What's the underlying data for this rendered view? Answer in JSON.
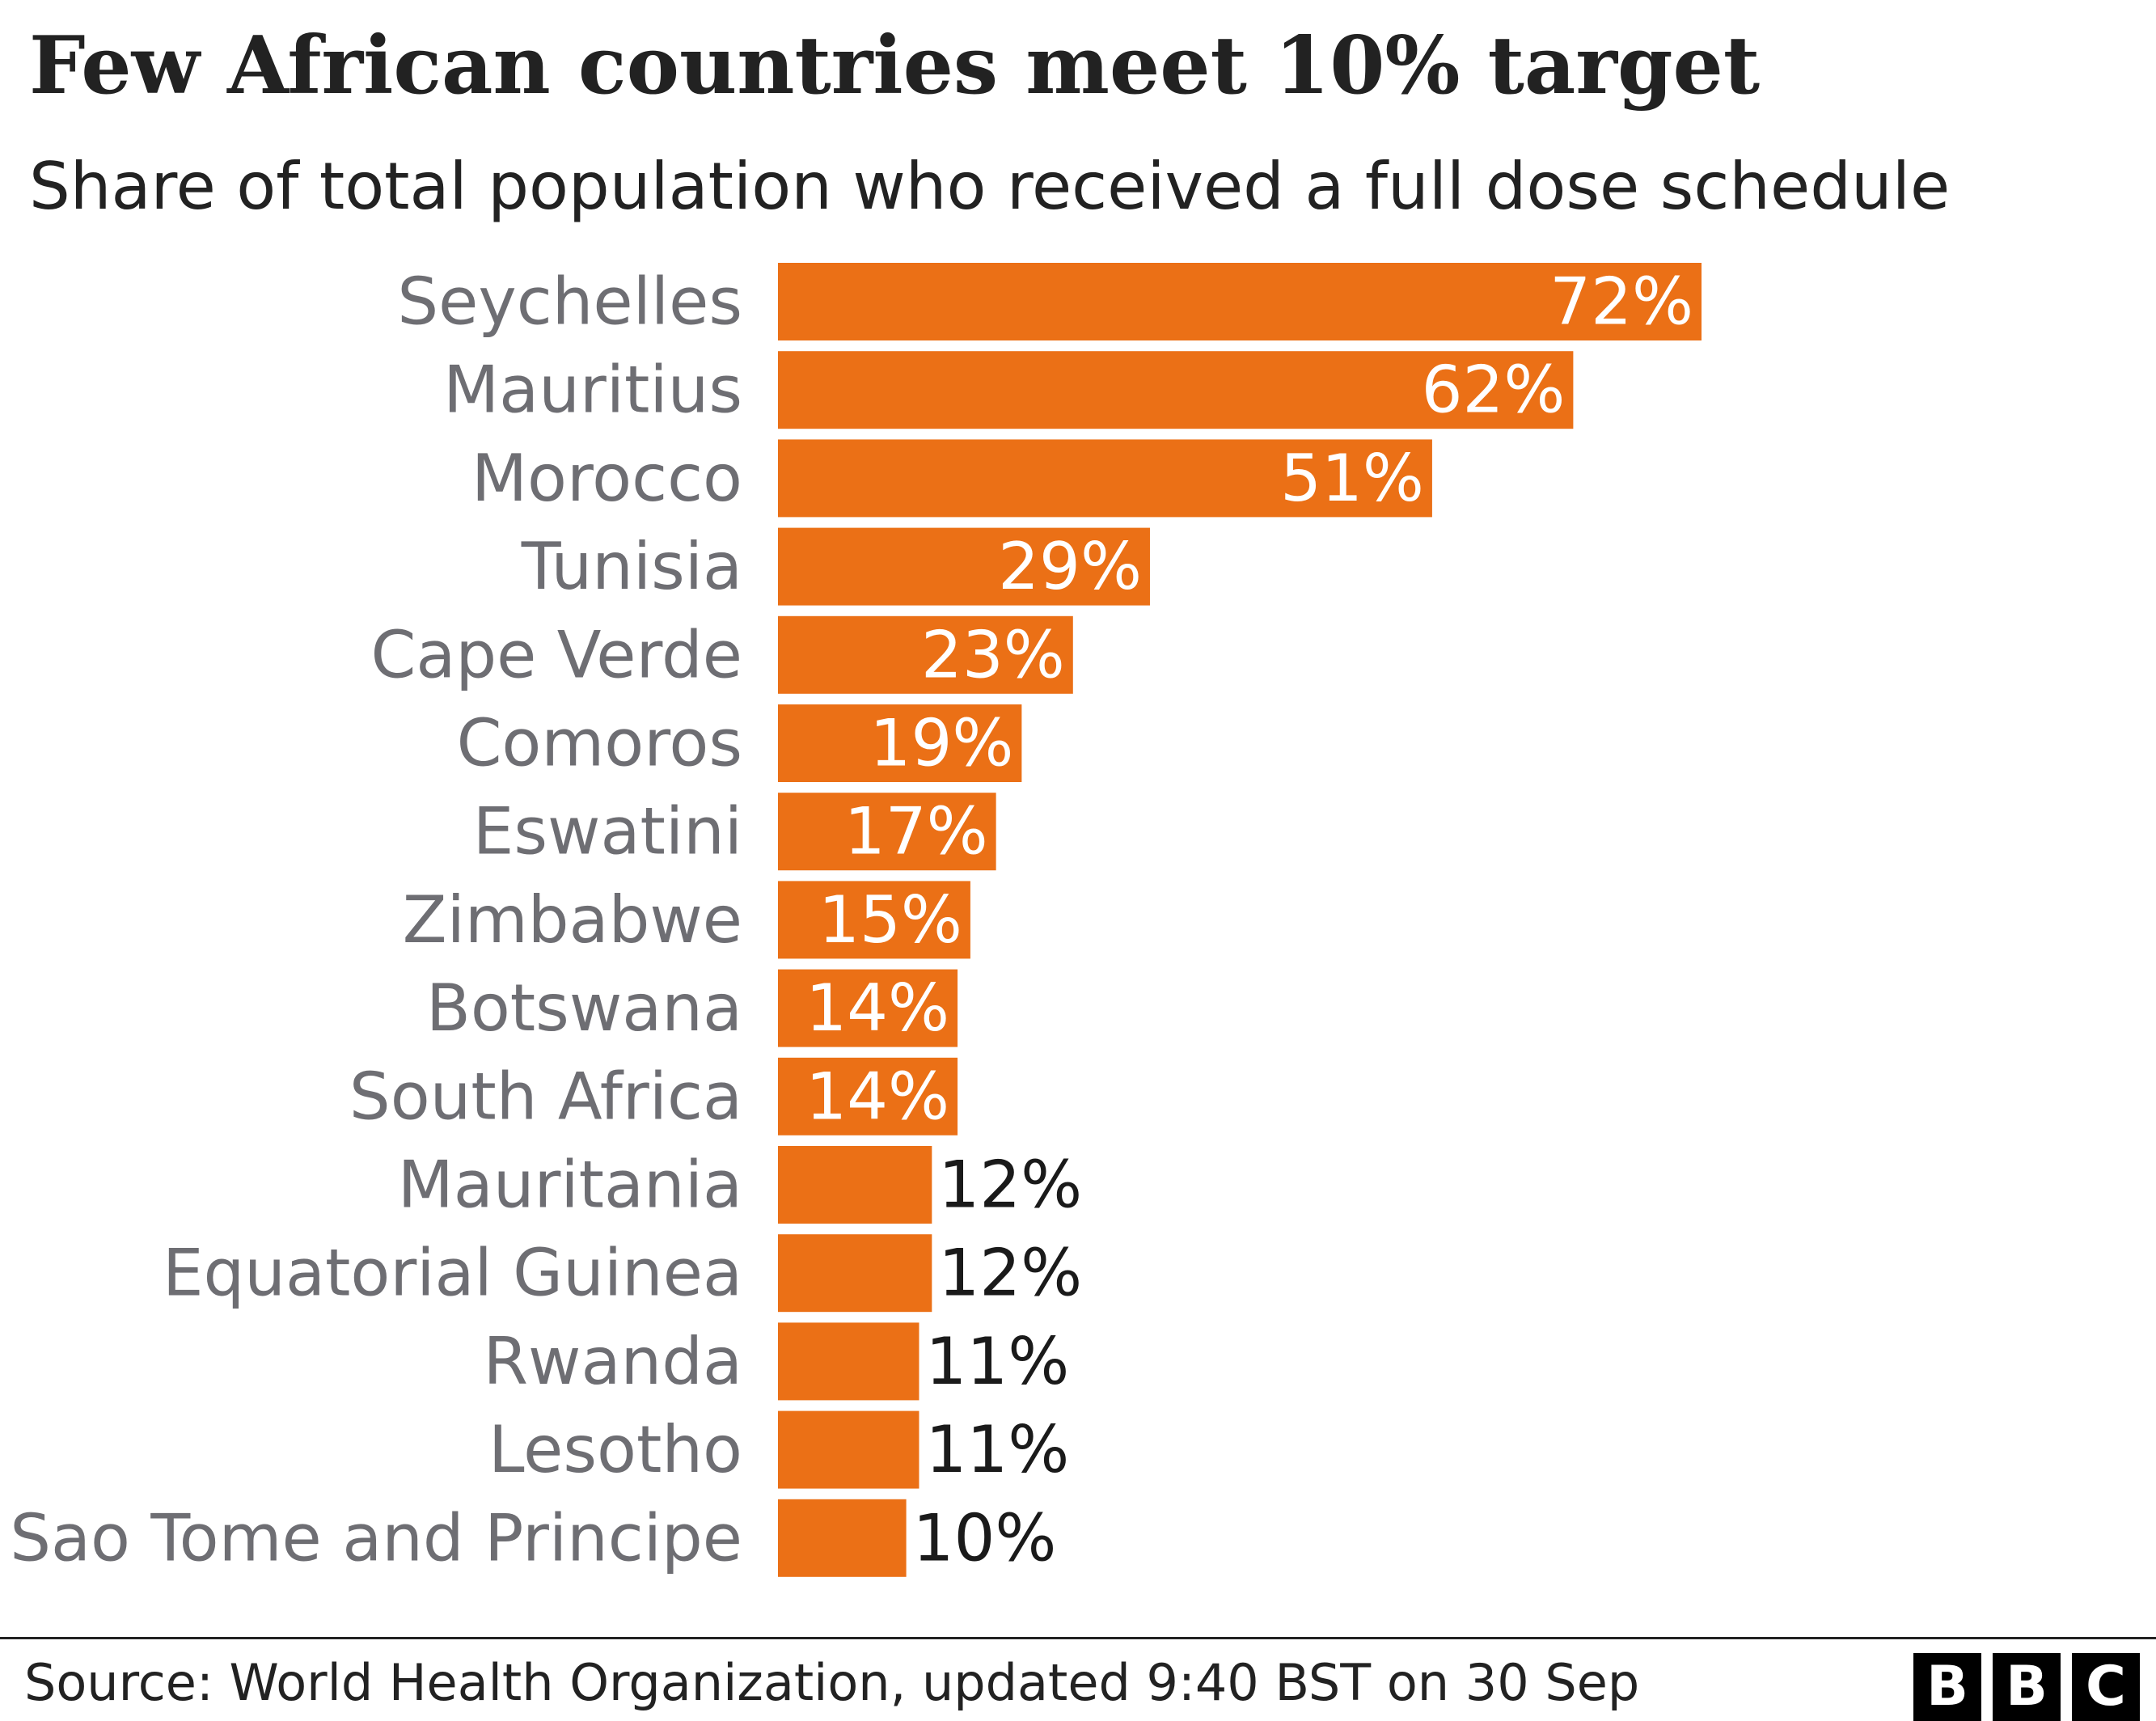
{
  "header": {
    "title": "Few African countries meet 10% target",
    "subtitle": "Share of total population who received a full dose schedule"
  },
  "footer": {
    "source": "Source: World Health Organization, updated 9:40 BST on 30 Sep",
    "logo_letters": [
      "B",
      "B",
      "C"
    ]
  },
  "colors": {
    "bar": "#eb7016",
    "label_inside": "#ffffff",
    "label_outside": "#1a1a1a"
  },
  "chart_data": {
    "type": "bar",
    "orientation": "horizontal",
    "title": "Few African countries meet 10% target",
    "subtitle": "Share of total population who received a full dose schedule",
    "xlabel": "",
    "ylabel": "",
    "xlim": [
      0,
      72
    ],
    "grid": false,
    "categories": [
      "Seychelles",
      "Mauritius",
      "Morocco",
      "Tunisia",
      "Cape Verde",
      "Comoros",
      "Eswatini",
      "Zimbabwe",
      "Botswana",
      "South Africa",
      "Mauritania",
      "Equatorial Guinea",
      "Rwanda",
      "Lesotho",
      "Sao Tome and Principe"
    ],
    "values": [
      72,
      62,
      51,
      29,
      23,
      19,
      17,
      15,
      14,
      14,
      12,
      12,
      11,
      11,
      10
    ],
    "value_labels": [
      "72%",
      "62%",
      "51%",
      "29%",
      "23%",
      "19%",
      "17%",
      "15%",
      "14%",
      "14%",
      "12%",
      "12%",
      "11%",
      "11%",
      "10%"
    ],
    "label_inside_min": 14
  }
}
